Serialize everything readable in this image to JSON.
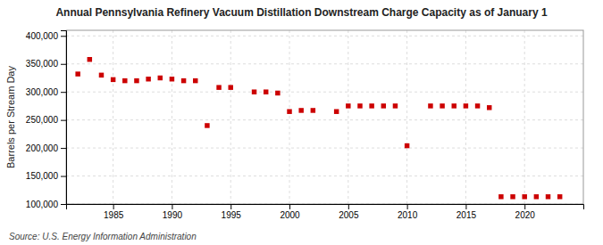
{
  "chart_data": {
    "type": "scatter",
    "title": "Annual Pennsylvania Refinery Vacuum Distillation Downstream Charge Capacity as of January 1",
    "ylabel": "Barrels per Stream Day",
    "source": "Source: U.S. Energy Information Administration",
    "color": "#cc0000",
    "marker": "square",
    "grid": true,
    "x": [
      1982,
      1983,
      1984,
      1985,
      1986,
      1987,
      1988,
      1989,
      1990,
      1991,
      1992,
      1993,
      1994,
      1995,
      1997,
      1998,
      1999,
      2000,
      2001,
      2002,
      2004,
      2005,
      2006,
      2007,
      2008,
      2009,
      2010,
      2012,
      2013,
      2014,
      2015,
      2016,
      2017,
      2018,
      2019,
      2020,
      2021,
      2022,
      2023
    ],
    "values": [
      332000,
      358000,
      330000,
      322000,
      320000,
      320000,
      323000,
      325000,
      323000,
      320000,
      320000,
      240000,
      308000,
      308000,
      300000,
      300000,
      298000,
      265000,
      267000,
      267000,
      265000,
      275000,
      275000,
      275000,
      275000,
      275000,
      204000,
      275000,
      275000,
      275000,
      275000,
      275000,
      272000,
      113000,
      113000,
      113000,
      113000,
      113000,
      113000
    ],
    "xlim": [
      1981,
      2025
    ],
    "xticks": [
      1985,
      1990,
      1995,
      2000,
      2005,
      2010,
      2015,
      2020
    ],
    "ylim": [
      100000,
      410000
    ],
    "yticks": [
      {
        "value": 100000,
        "label": "100,000"
      },
      {
        "value": 150000,
        "label": "150,000"
      },
      {
        "value": 200000,
        "label": "200,000"
      },
      {
        "value": 250000,
        "label": "250,000"
      },
      {
        "value": 300000,
        "label": "300,000"
      },
      {
        "value": 350000,
        "label": "350,000"
      },
      {
        "value": 400000,
        "label": "400,000"
      }
    ]
  }
}
